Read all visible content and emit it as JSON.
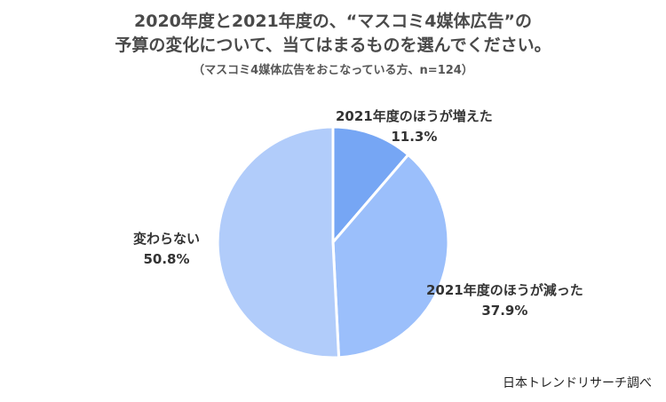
{
  "title_line1": "2020年度と2021年度の、“マスコミ4媒体広告”の",
  "title_line2": "予算の変化について、当てはまるものを選んでください。",
  "subtitle": "（マスコミ4媒体広告をおこなっている方、n=124）",
  "source": "日本トレンドリサーチ調べ",
  "chart_data": {
    "type": "pie",
    "start_angle_deg": 0,
    "direction": "clockwise",
    "slices": [
      {
        "label": "2021年度のほうが増えた",
        "value": 11.3,
        "value_label": "11.3%",
        "color": "#76a6f4"
      },
      {
        "label": "2021年度のほうが減った",
        "value": 37.9,
        "value_label": "37.9%",
        "color": "#9bbffb"
      },
      {
        "label": "変わらない",
        "value": 50.8,
        "value_label": "50.8%",
        "color": "#b1ccfa"
      }
    ]
  }
}
